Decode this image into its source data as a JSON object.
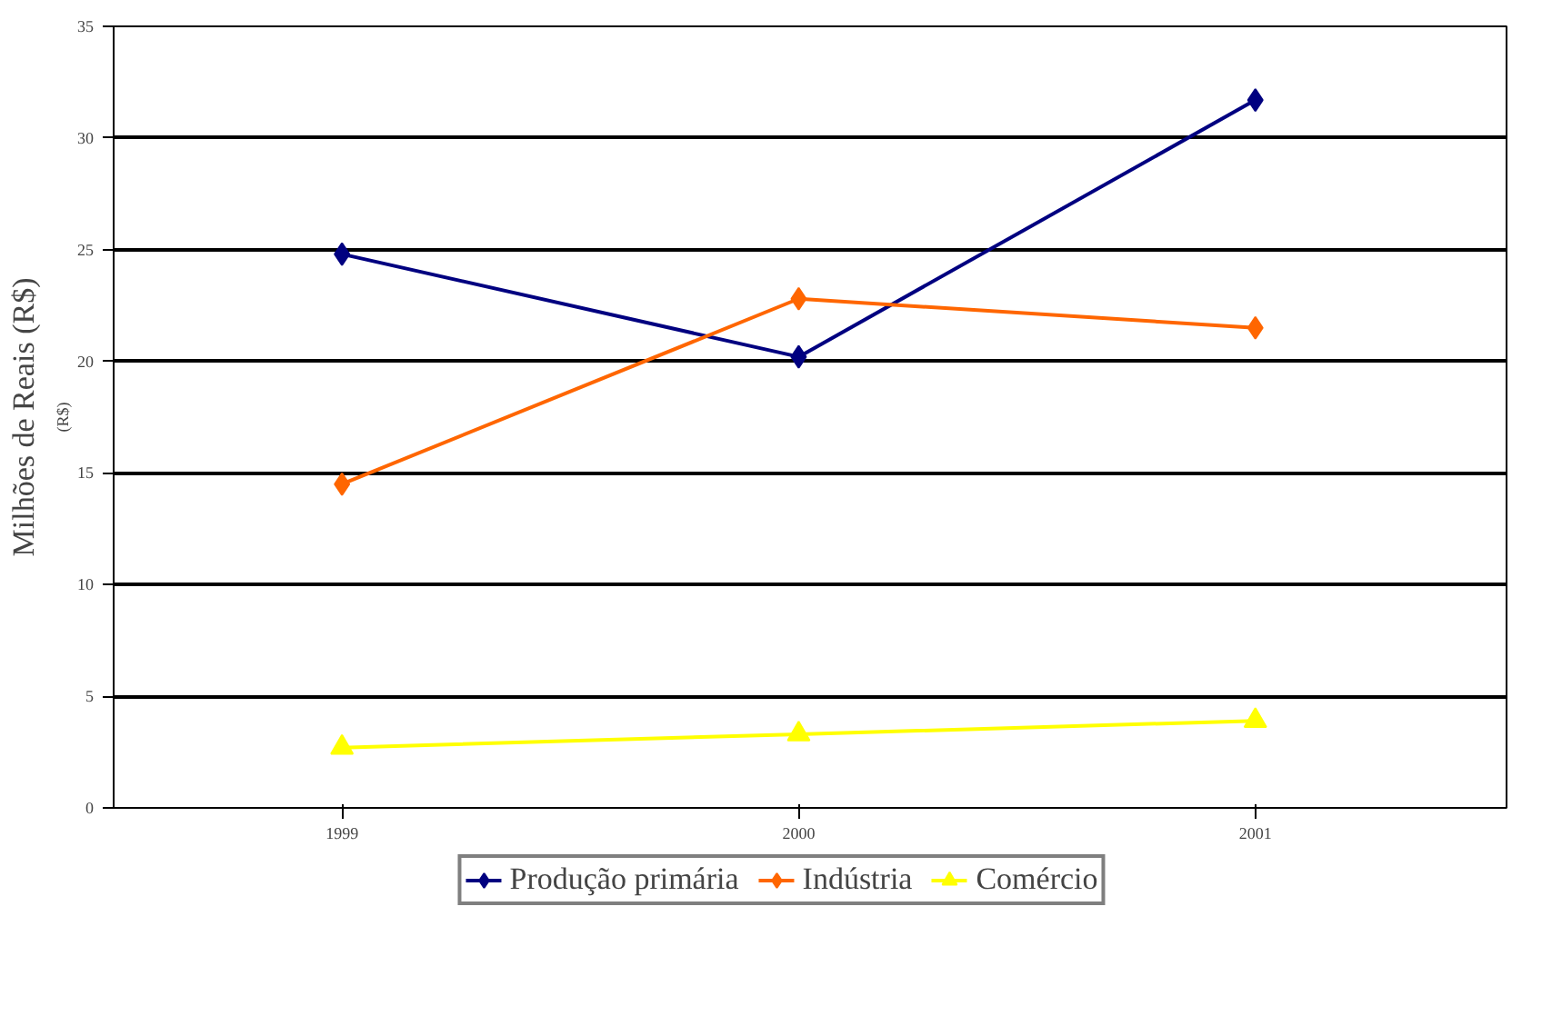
{
  "chart_data": {
    "type": "line",
    "ylabel": "Milhões de Reais (R$)",
    "annotations": [
      "(R$)"
    ],
    "categories": [
      "1999",
      "2000",
      "2001"
    ],
    "series": [
      {
        "name": "Produção primária",
        "color": "#000080",
        "marker": "diamond",
        "values": [
          24.8,
          20.2,
          31.7
        ]
      },
      {
        "name": "Indústria",
        "color": "#ff6600",
        "marker": "diamond",
        "values": [
          14.5,
          22.8,
          21.5
        ]
      },
      {
        "name": "Comércio",
        "color": "#ffff00",
        "marker": "triangle",
        "values": [
          2.7,
          3.3,
          3.9
        ]
      }
    ],
    "ylim": [
      0,
      35
    ],
    "yticks": [
      0,
      5,
      10,
      15,
      20,
      25,
      30,
      35
    ],
    "grid": "y",
    "legend": "bottom",
    "line_style": "solid"
  }
}
